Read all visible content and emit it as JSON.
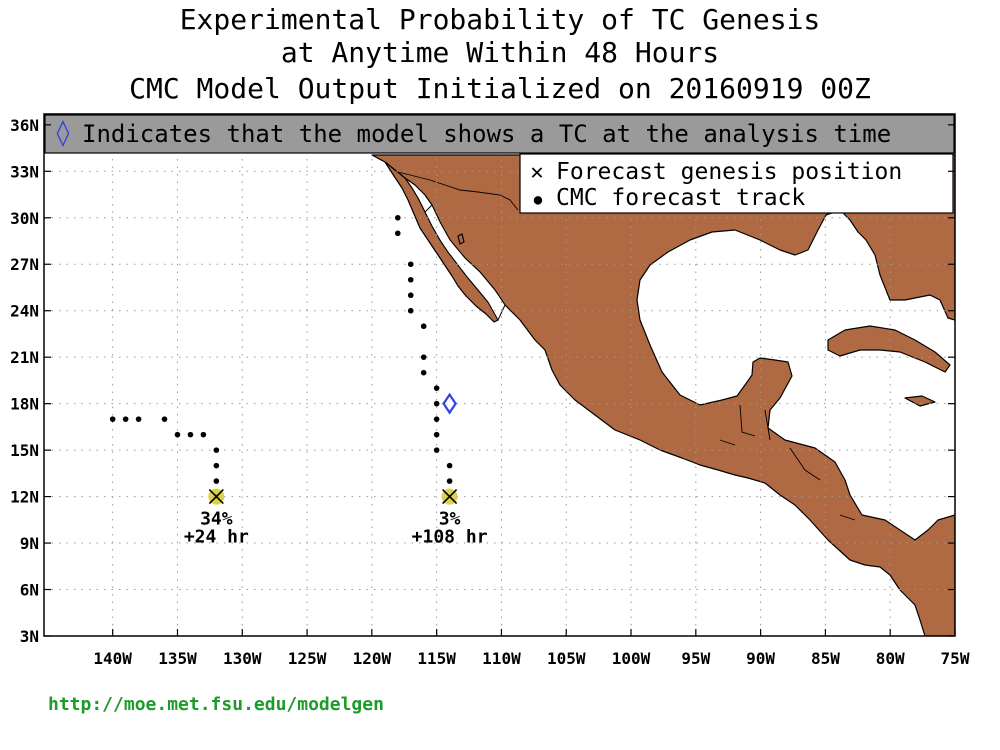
{
  "title": {
    "line1": "Experimental Probability of TC Genesis",
    "line2": "at Anytime Within 48 Hours",
    "line3": "CMC Model Output Initialized on 20160919 00Z"
  },
  "banner": {
    "symbol": "◊",
    "text": "Indicates that the model shows a TC at the analysis time"
  },
  "legend": {
    "genesis_symbol": "✕",
    "genesis_label": "Forecast genesis position",
    "track_symbol": "●",
    "track_label": "CMC forecast track"
  },
  "axes": {
    "lon_labels": [
      "140W",
      "135W",
      "130W",
      "125W",
      "120W",
      "115W",
      "110W",
      "105W",
      "100W",
      "95W",
      "90W",
      "85W",
      "80W",
      "75W"
    ],
    "lat_labels": [
      "36N",
      "33N",
      "30N",
      "27N",
      "24N",
      "21N",
      "18N",
      "15N",
      "12N",
      "9N",
      "6N",
      "3N"
    ]
  },
  "colors": {
    "land": "#b06a43",
    "banner": "#9a9a9a",
    "genesis": "#d8cc3a",
    "analysis": "#2b45e0",
    "track": "#000000",
    "url": "#1d9b2a"
  },
  "tracks": [
    {
      "genesis": {
        "lon": -132,
        "lat": 12,
        "prob": "34%",
        "lead": "+24 hr"
      },
      "points": [
        [
          -132,
          12
        ],
        [
          -132,
          13
        ],
        [
          -132,
          14
        ],
        [
          -132,
          15
        ],
        [
          -133,
          16
        ],
        [
          -134,
          16
        ],
        [
          -135,
          16
        ],
        [
          -136,
          17
        ],
        [
          -138,
          17
        ],
        [
          -139,
          17
        ],
        [
          -140,
          17
        ]
      ]
    },
    {
      "genesis": {
        "lon": -114,
        "lat": 12,
        "prob": "3%",
        "lead": "+108 hr"
      },
      "analysis": {
        "lon": -114,
        "lat": 18
      },
      "points": [
        [
          -114,
          13
        ],
        [
          -114,
          14
        ],
        [
          -115,
          15
        ],
        [
          -115,
          16
        ],
        [
          -115,
          17
        ],
        [
          -115,
          18
        ],
        [
          -115,
          19
        ],
        [
          -116,
          20
        ],
        [
          -116,
          21
        ],
        [
          -116,
          23
        ],
        [
          -117,
          24
        ],
        [
          -117,
          25
        ],
        [
          -117,
          26
        ],
        [
          -117,
          27
        ],
        [
          -118,
          29
        ],
        [
          -118,
          30
        ]
      ]
    }
  ],
  "footer": {
    "url": "http://moe.met.fsu.edu/modelgen"
  }
}
